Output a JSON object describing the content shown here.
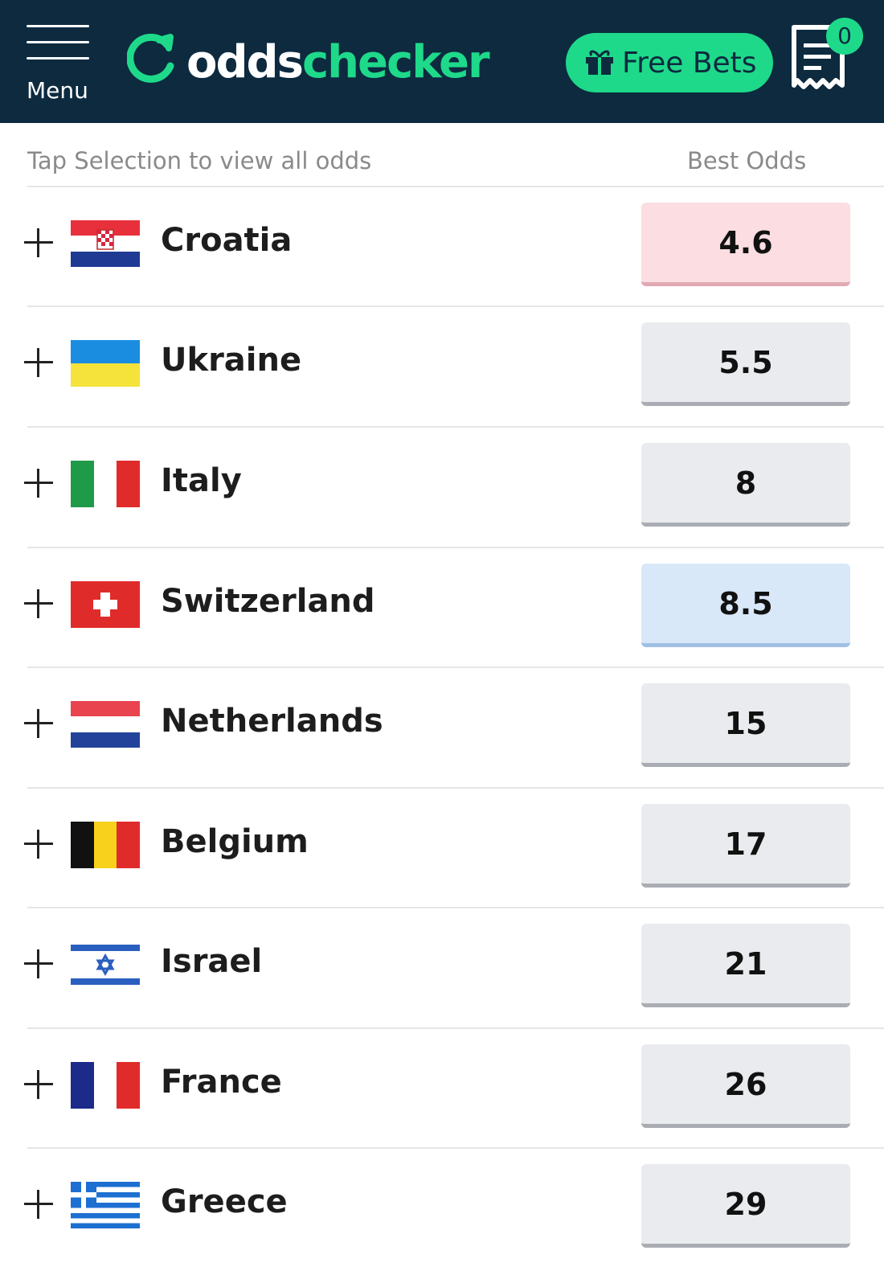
{
  "header": {
    "menu_label": "Menu",
    "logo_part1": "odds",
    "logo_part2": "checker",
    "free_bets_label": "Free Bets",
    "betslip_count": "0",
    "brand_color": "#1ed98a",
    "bg_color": "#0d2a3f"
  },
  "columns": {
    "hint": "Tap Selection to view all odds",
    "best_odds": "Best Odds"
  },
  "selections": [
    {
      "name": "Croatia",
      "odds": "4.6",
      "flag": "croatia-flag-icon",
      "highlight": "red"
    },
    {
      "name": "Ukraine",
      "odds": "5.5",
      "flag": "ukraine-flag-icon",
      "highlight": "none"
    },
    {
      "name": "Italy",
      "odds": "8",
      "flag": "italy-flag-icon",
      "highlight": "none"
    },
    {
      "name": "Switzerland",
      "odds": "8.5",
      "flag": "switzerland-flag-icon",
      "highlight": "blue"
    },
    {
      "name": "Netherlands",
      "odds": "15",
      "flag": "netherlands-flag-icon",
      "highlight": "none"
    },
    {
      "name": "Belgium",
      "odds": "17",
      "flag": "belgium-flag-icon",
      "highlight": "none"
    },
    {
      "name": "Israel",
      "odds": "21",
      "flag": "israel-flag-icon",
      "highlight": "none"
    },
    {
      "name": "France",
      "odds": "26",
      "flag": "france-flag-icon",
      "highlight": "none"
    },
    {
      "name": "Greece",
      "odds": "29",
      "flag": "greece-flag-icon",
      "highlight": "none"
    }
  ]
}
